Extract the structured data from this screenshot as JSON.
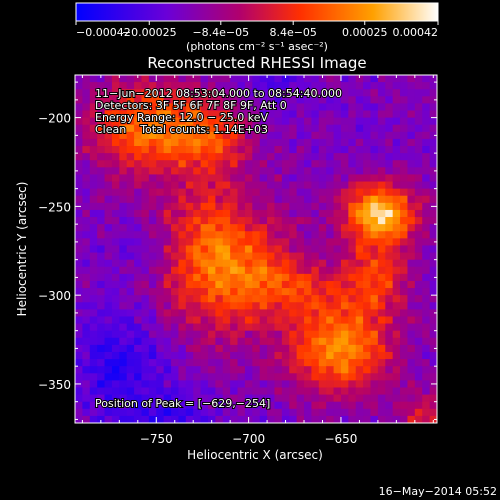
{
  "chart_data": {
    "type": "heatmap",
    "title": "Reconstructed RHESSI Image",
    "xlabel": "Heliocentric X (arcsec)",
    "ylabel": "Heliocentric Y (arcsec)",
    "xlim": [
      -794,
      -598
    ],
    "ylim": [
      -372,
      -176
    ],
    "x_ticks": [
      -750,
      -700,
      -650
    ],
    "x_tick_labels": [
      "−750",
      "−700",
      "−650"
    ],
    "y_ticks": [
      -200,
      -250,
      -300,
      -350
    ],
    "y_tick_labels": [
      "−200",
      "−250",
      "−300",
      "−350"
    ],
    "colorbar": {
      "range": [
        -0.00042,
        0.00042
      ],
      "tick_values": [
        -0.00042,
        -0.00025,
        -8.4e-05,
        8.4e-05,
        0.00025,
        0.00042
      ],
      "tick_labels": [
        "−0.00042",
        "−0.00025",
        "−8.4e−05",
        "8.4e−05",
        "0.00025",
        "0.00042"
      ],
      "unit_label": "(photons cm⁻² s⁻¹ asec⁻²)",
      "colors": [
        "#0000ff",
        "#6a00d8",
        "#b0006e",
        "#ff3000",
        "#ffa000",
        "#ffffff"
      ]
    },
    "annotations": [
      "11−Jun−2012 08:53:04.000 to 08:54:40.000",
      "Detectors: 3F 5F 6F 7F 8F 9F, Att 0",
      "Energy Range: 12.0 − 25.0 keV",
      "Clean    Total counts: 1.14E+03"
    ],
    "peak_label": "Position of Peak = [−629,−254]",
    "peak": [
      -629,
      -254
    ],
    "bright_sources": [
      {
        "x": -715,
        "y": -278,
        "amp": 1.0,
        "sx": 24,
        "sy": 30
      },
      {
        "x": -629,
        "y": -254,
        "amp": 1.35,
        "sx": 14,
        "sy": 12
      },
      {
        "x": -650,
        "y": -330,
        "amp": 1.05,
        "sx": 20,
        "sy": 18
      },
      {
        "x": -755,
        "y": -205,
        "amp": 0.95,
        "sx": 22,
        "sy": 18
      },
      {
        "x": -720,
        "y": -210,
        "amp": 0.55,
        "sx": 14,
        "sy": 14
      },
      {
        "x": -675,
        "y": -295,
        "amp": 0.5,
        "sx": 20,
        "sy": 12
      },
      {
        "x": -630,
        "y": -290,
        "amp": 0.7,
        "sx": 12,
        "sy": 14
      },
      {
        "x": -605,
        "y": -370,
        "amp": 0.6,
        "sx": 10,
        "sy": 10
      }
    ],
    "cold_spots": [
      {
        "x": -770,
        "y": -340,
        "amp": 0.55,
        "sx": 18,
        "sy": 22
      },
      {
        "x": -740,
        "y": -370,
        "amp": 0.45,
        "sx": 14,
        "sy": 10
      },
      {
        "x": -690,
        "y": -180,
        "amp": 0.3,
        "sx": 12,
        "sy": 10
      },
      {
        "x": -700,
        "y": -250,
        "amp": 0.25,
        "sx": 10,
        "sy": 10
      },
      {
        "x": -755,
        "y": -275,
        "amp": 0.3,
        "sx": 12,
        "sy": 12
      }
    ]
  },
  "footer": {
    "timestamp": "16−May−2014 05:52"
  }
}
